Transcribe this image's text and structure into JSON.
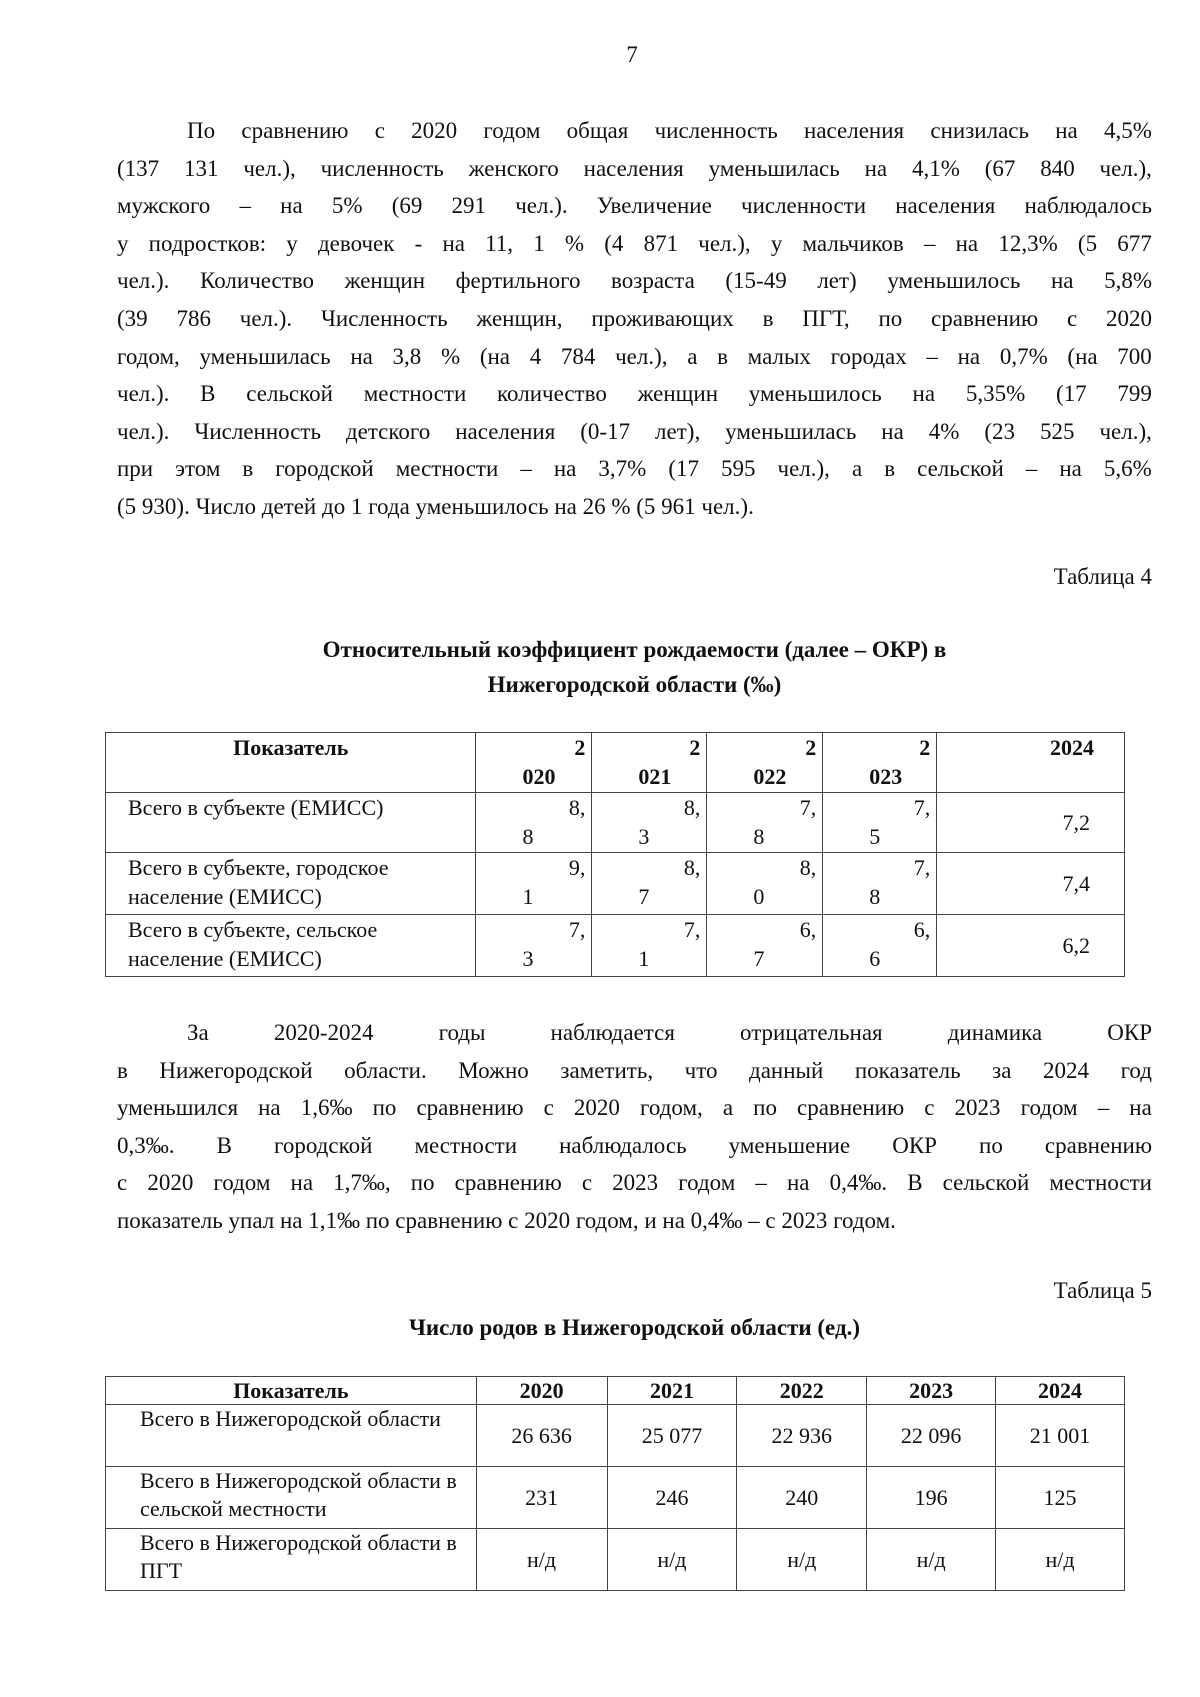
{
  "page_number": "7",
  "paragraph1": [
    "По сравнению с 2020 годом общая численность населения снизилась на 4,5%",
    "(137 131 чел.), численность женского населения уменьшилась на 4,1% (67 840 чел.),",
    "мужского – на 5% (69 291 чел.). Увеличение численности населения наблюдалось",
    "у подростков: у девочек - на 11, 1 % (4 871 чел.), у мальчиков – на 12,3% (5 677",
    "чел.). Количество женщин фертильного возраста (15-49 лет) уменьшилось на 5,8%",
    "(39 786 чел.). Численность женщин, проживающих в ПГТ, по сравнению с 2020",
    "годом, уменьшилась на 3,8 % (на 4 784 чел.), а в малых городах – на 0,7% (на 700",
    "чел.). В сельской местности количество женщин уменьшилось на 5,35% (17 799",
    "чел.). Численность детского населения (0-17 лет), уменьшилась на 4% (23 525 чел.),",
    "при этом в городской местности – на 3,7% (17 595 чел.), а в сельской – на 5,6%",
    "(5 930). Число детей до 1 года уменьшилось на 26 % (5 961 чел.)."
  ],
  "table4": {
    "label": "Таблица 4",
    "title_lines": [
      "Относительный коэффициент рождаемости (далее – ОКР) в",
      "Нижегородской области (‰)"
    ],
    "header": {
      "indicator": "Показатель",
      "years": [
        [
          "2",
          "020"
        ],
        [
          "2",
          "021"
        ],
        [
          "2",
          "022"
        ],
        [
          "2",
          "023"
        ]
      ],
      "last_year": "2024"
    },
    "rows": [
      {
        "label": "Всего в субъекте (ЕМИСС)",
        "values": [
          [
            "8,",
            "8"
          ],
          [
            "8,",
            "3"
          ],
          [
            "7,",
            "8"
          ],
          [
            "7,",
            "5"
          ]
        ],
        "last": "7,2"
      },
      {
        "label": "Всего в субъекте, городское население (ЕМИСС)",
        "values": [
          [
            "9,",
            "1"
          ],
          [
            "8,",
            "7"
          ],
          [
            "8,",
            "0"
          ],
          [
            "7,",
            "8"
          ]
        ],
        "last": "7,4"
      },
      {
        "label": "Всего в субъекте, сельское население (ЕМИСС)",
        "values": [
          [
            "7,",
            "3"
          ],
          [
            "7,",
            "1"
          ],
          [
            "6,",
            "7"
          ],
          [
            "6,",
            "6"
          ]
        ],
        "last": "6,2"
      }
    ]
  },
  "paragraph2": [
    "За 2020-2024 годы наблюдается отрицательная динамика ОКР",
    "в Нижегородской области. Можно заметить, что данный показатель за 2024 год",
    "уменьшился на 1,6‰ по сравнению с 2020 годом, а по сравнению с 2023 годом – на",
    "0,3‰. В городской местности наблюдалось уменьшение ОКР по сравнению",
    "с 2020 годом на 1,7‰, по сравнению с 2023 годом – на 0,4‰. В сельской местности",
    "показатель упал на 1,1‰ по сравнению с 2020 годом, и на 0,4‰ – с 2023 годом."
  ],
  "table5": {
    "label": "Таблица 5",
    "title": "Число родов в Нижегородской области (ед.)",
    "header": [
      "Показатель",
      "2020",
      "2021",
      "2022",
      "2023",
      "2024"
    ],
    "rows": [
      {
        "label": "Всего в Нижегородской области",
        "values": [
          "26 636",
          "25 077",
          "22 936",
          "22 096",
          "21 001"
        ]
      },
      {
        "label": "Всего в Нижегородской области в сельской местности",
        "values": [
          "231",
          "246",
          "240",
          "196",
          "125"
        ]
      },
      {
        "label": "Всего в Нижегородской области в ПГТ",
        "values": [
          "н/д",
          "н/д",
          "н/д",
          "н/д",
          "н/д"
        ]
      }
    ]
  }
}
